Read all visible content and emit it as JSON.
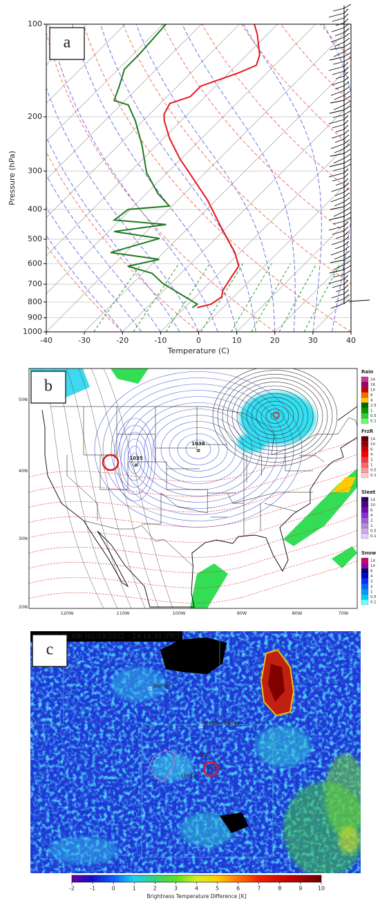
{
  "chart_data": {
    "type": "line",
    "panel_label": "a",
    "x_label": "Temperature (C)",
    "y_label": "Pressure (hPa)",
    "xlim": [
      -40,
      40
    ],
    "xticks": [
      -40,
      -30,
      -20,
      -10,
      0,
      10,
      20,
      30,
      40
    ],
    "ylim": [
      1000,
      100
    ],
    "yticks": [
      100,
      200,
      300,
      400,
      500,
      600,
      700,
      800,
      900,
      1000
    ],
    "log_y": true,
    "grid": true,
    "series": [
      {
        "color": "#e8141c",
        "y": [
          100,
          108,
          126,
          136,
          144,
          159,
          172,
          181,
          196,
          206,
          235,
          274,
          320,
          374,
          460,
          552,
          612,
          662,
          734,
          771,
          813,
          834
        ],
        "values": [
          -66.1,
          -62.6,
          -56.6,
          -54.8,
          -57.5,
          -63.9,
          -63.9,
          -67.5,
          -66.2,
          -64.4,
          -58.4,
          -50.3,
          -41.2,
          -32.1,
          -21.2,
          -11.3,
          -6.7,
          -5.8,
          -4.5,
          -3.1,
          -4.0,
          -6.7
        ]
      },
      {
        "color": "#1e7a1e",
        "y": [
          100,
          111,
          126,
          140,
          159,
          177,
          183,
          206,
          247,
          304,
          355,
          390,
          400,
          433,
          448,
          472,
          497,
          552,
          581,
          612,
          645,
          696,
          752,
          813,
          834
        ],
        "values": [
          -89.3,
          -88.9,
          -88.4,
          -88.4,
          -85.3,
          -82.9,
          -78.0,
          -72.0,
          -63.9,
          -55.4,
          -47.0,
          -40.7,
          -50.6,
          -51.5,
          -36.7,
          -48.5,
          -34.8,
          -43.9,
          -29.4,
          -35.8,
          -27.6,
          -22.1,
          -14.9,
          -7.6,
          -8.0
        ]
      }
    ]
  },
  "map_panel": {
    "panel_label": "b",
    "lat_labels": [
      "50N",
      "40N",
      "30N",
      "20N"
    ],
    "lon_labels": [
      "120W",
      "110W",
      "100W",
      "90W",
      "80W",
      "70W"
    ],
    "pressure_centers": [
      "1038",
      "1035"
    ],
    "legend": [
      {
        "title": "Rain",
        "labels": [
          "24",
          "16",
          "10",
          "6",
          "4",
          "2.5",
          "1",
          "0.5",
          "0.1"
        ],
        "colors": [
          "#cc3399",
          "#990066",
          "#cc0000",
          "#ff6600",
          "#ffcc00",
          "#006600",
          "#009900",
          "#33cc33",
          "#66ff66"
        ]
      },
      {
        "title": "FrzR",
        "labels": [
          "14",
          "10",
          "6",
          "4",
          "2",
          "1",
          "0.5",
          "0.1"
        ],
        "colors": [
          "#660000",
          "#990000",
          "#cc0000",
          "#ff0000",
          "#ff3333",
          "#ff6666",
          "#ff9999",
          "#ffcccc"
        ]
      },
      {
        "title": "Sleet",
        "labels": [
          "14",
          "10",
          "6",
          "4",
          "2",
          "1",
          "0.5",
          "0.1"
        ],
        "colors": [
          "#330066",
          "#4b0082",
          "#6a0dad",
          "#8a2be2",
          "#9966cc",
          "#b38fd9",
          "#ccaaee",
          "#e6ccff"
        ]
      },
      {
        "title": "Snow",
        "labels": [
          "14",
          "10",
          "6",
          "4",
          "3",
          "2",
          "1",
          "0.5",
          "0.1"
        ],
        "colors": [
          "#cc0066",
          "#990099",
          "#000080",
          "#0000cc",
          "#0033ff",
          "#0066ff",
          "#0099ff",
          "#00ccff",
          "#66ffff"
        ]
      }
    ]
  },
  "satellite_panel": {
    "panel_label": "c",
    "title": "GOES-16 ABI (02/19/2022 – 14:16:30 UTC)",
    "places": [
      "Burley",
      "Cache Valley",
      "SLC",
      "Lindon",
      "Provo"
    ],
    "colorbar": {
      "label": "Brightness Temperature Difference [K]",
      "lim": [
        -2,
        10
      ],
      "ticks": [
        -2,
        -1,
        0,
        1,
        2,
        3,
        4,
        5,
        6,
        7,
        8,
        9,
        10
      ]
    }
  }
}
